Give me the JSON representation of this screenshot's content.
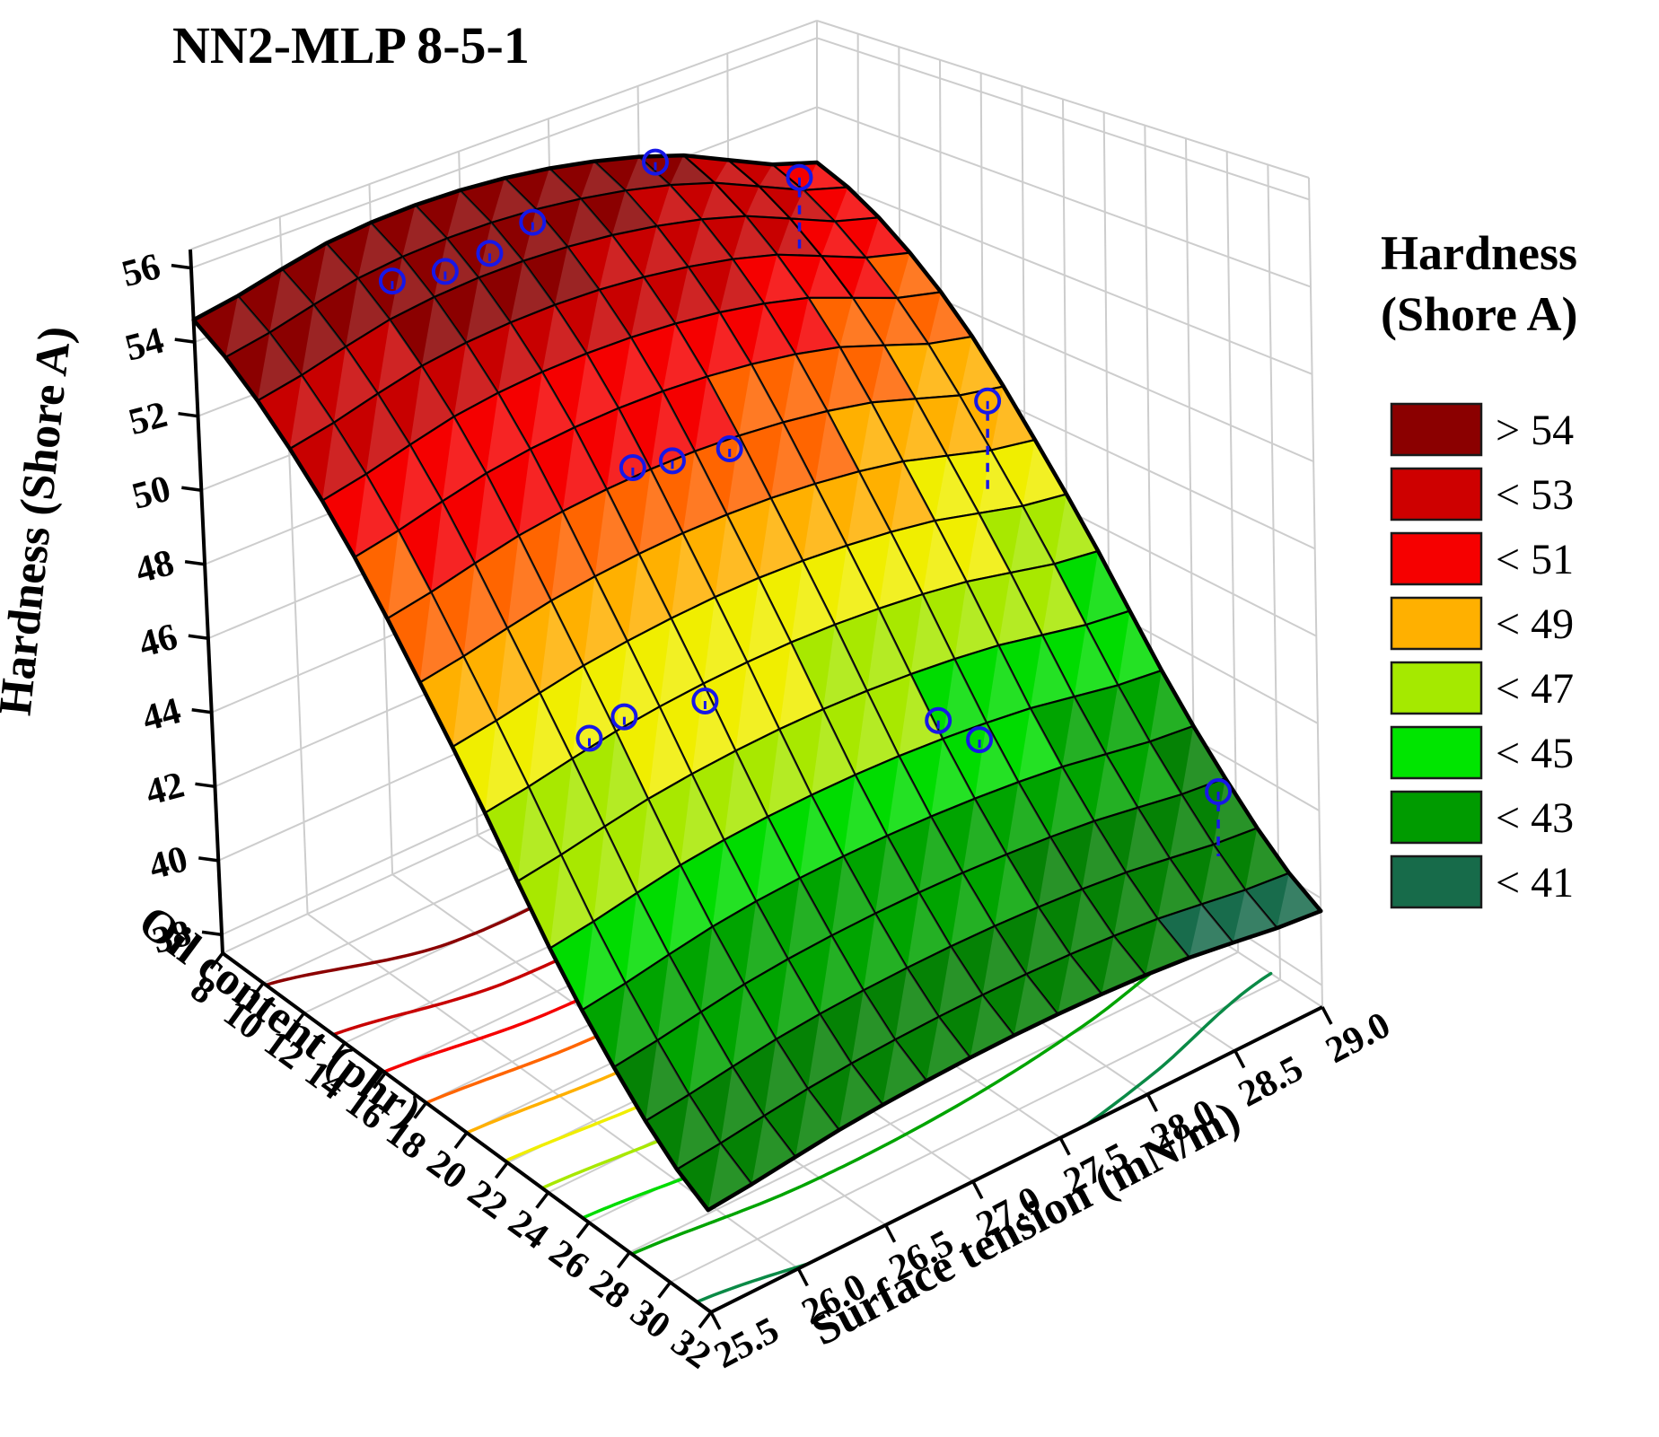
{
  "page": {
    "title": "NN2-MLP 8-5-1"
  },
  "chart_data": {
    "type": "surface3d",
    "title": "NN2-MLP 8-5-1",
    "x_axis": {
      "label": "Oil content (phr)",
      "min": 8,
      "max": 32,
      "tick_step": 2,
      "ticks": [
        8,
        10,
        12,
        14,
        16,
        18,
        20,
        22,
        24,
        26,
        28,
        30,
        32
      ]
    },
    "y_axis": {
      "label": "Surface tension (mN/m)",
      "min": 25.5,
      "max": 29.0,
      "tick_step": 0.5,
      "ticks": [
        "25.5",
        "26.0",
        "26.5",
        "27.0",
        "27.5",
        "28.0",
        "28.5",
        "29.0"
      ]
    },
    "z_axis": {
      "label": "Hardness (Shore A)",
      "min": 38,
      "max": 56,
      "tick_step": 2,
      "ticks": [
        38,
        40,
        42,
        44,
        46,
        48,
        50,
        52,
        54,
        56
      ],
      "floor_value": 37.5,
      "top_value": 56.5
    },
    "legend": {
      "title_line1": "Hardness",
      "title_line2": "(Shore A)",
      "entries": [
        {
          "label": "> 54",
          "color": "#8B0000"
        },
        {
          "label": "< 53",
          "color": "#CE0000"
        },
        {
          "label": "< 51",
          "color": "#F60000"
        },
        {
          "label": "< 49",
          "color": "#FFB000"
        },
        {
          "label": "< 47",
          "color": "#A5E900"
        },
        {
          "label": "< 45",
          "color": "#00E500"
        },
        {
          "label": "< 43",
          "color": "#009B00"
        },
        {
          "label": "< 41",
          "color": "#176B4A"
        }
      ]
    },
    "bands": {
      "thresholds": [
        54,
        52.5,
        51,
        49.5,
        48,
        46.5,
        45,
        43.5,
        42,
        40.5
      ],
      "colors": [
        "#8B0000",
        "#C80000",
        "#F50000",
        "#FF6500",
        "#FFB000",
        "#F0EE00",
        "#A8E800",
        "#00DC00",
        "#00A400",
        "#058205",
        "#186C4C"
      ]
    },
    "contours": [
      {
        "level": 54.0,
        "color": "#8B0000"
      },
      {
        "level": 52.5,
        "color": "#C80000"
      },
      {
        "level": 51.0,
        "color": "#F50000"
      },
      {
        "level": 49.5,
        "color": "#FF6500"
      },
      {
        "level": 48.0,
        "color": "#FFB000"
      },
      {
        "level": 46.5,
        "color": "#F0EE00"
      },
      {
        "level": 45.0,
        "color": "#A8E800"
      },
      {
        "level": 43.5,
        "color": "#00DC00"
      },
      {
        "level": 42.0,
        "color": "#00A400"
      },
      {
        "level": 40.5,
        "color": "#0A8A46"
      }
    ],
    "surface_grid": {
      "oil": [
        8,
        14,
        20,
        26,
        32
      ],
      "tension": [
        25.5,
        26.375,
        27.25,
        28.125,
        29.0
      ],
      "hardness": [
        [
          54.6,
          52.2,
          48.0,
          43.3,
          40.3
        ],
        [
          55.4,
          52.9,
          48.4,
          43.7,
          40.6
        ],
        [
          55.3,
          52.8,
          48.3,
          43.6,
          40.6
        ],
        [
          54.3,
          51.9,
          47.6,
          43.1,
          40.3
        ],
        [
          52.4,
          50.2,
          46.4,
          42.3,
          39.7
        ]
      ]
    },
    "data_points": [
      {
        "oil": 10.3,
        "tension": 26.35,
        "stem": 0
      },
      {
        "oil": 10.7,
        "tension": 26.6,
        "stem": 0
      },
      {
        "oil": 10.7,
        "tension": 26.85,
        "stem": 0
      },
      {
        "oil": 10.2,
        "tension": 27.15,
        "stem": 0
      },
      {
        "oil": 8.8,
        "tension": 28.0,
        "stem": 0
      },
      {
        "oil": 9.3,
        "tension": 28.75,
        "stem": 70
      },
      {
        "oil": 17.0,
        "tension": 26.9,
        "stem": 0
      },
      {
        "oil": 17.2,
        "tension": 27.1,
        "stem": 0
      },
      {
        "oil": 17.4,
        "tension": 27.4,
        "stem": 0
      },
      {
        "oil": 17.5,
        "tension": 28.85,
        "stem": 95
      },
      {
        "oil": 21.5,
        "tension": 26.1,
        "stem": 0
      },
      {
        "oil": 21.5,
        "tension": 26.3,
        "stem": 0
      },
      {
        "oil": 22.0,
        "tension": 26.7,
        "stem": 0
      },
      {
        "oil": 24.3,
        "tension": 27.75,
        "stem": 0
      },
      {
        "oil": 25.0,
        "tension": 27.9,
        "stem": 0
      },
      {
        "oil": 28.0,
        "tension": 28.9,
        "stem": 60
      }
    ],
    "marker_color": "#1717E8",
    "mesh_line_color": "#000000",
    "grid_color": "#CDCDCD"
  }
}
